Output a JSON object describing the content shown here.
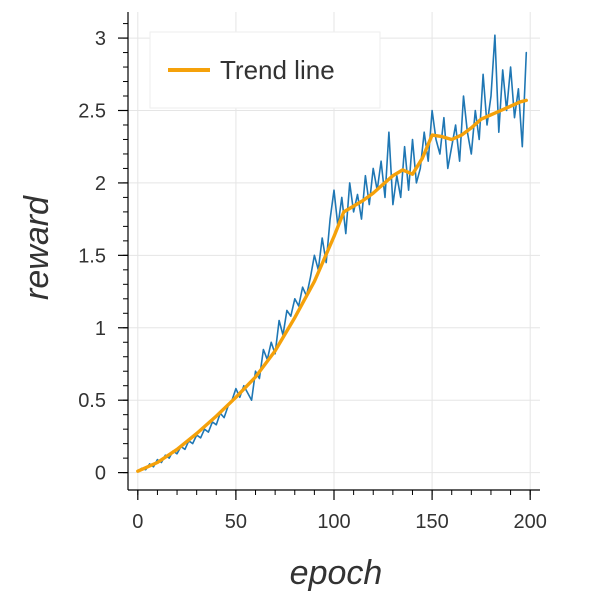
{
  "chart_data": {
    "type": "line",
    "xlabel": "epoch",
    "ylabel": "reward",
    "xlim": [
      -5,
      205
    ],
    "ylim": [
      -0.12,
      3.18
    ],
    "grid": true,
    "legend": {
      "placement": "top-left",
      "entries": [
        "Trend line"
      ]
    },
    "colors": {
      "raw": "#1f77b4",
      "trend": "#f5a10a",
      "grid": "#e5e5e5"
    },
    "x_ticks": [
      {
        "value": 0,
        "label": "0"
      },
      {
        "value": 50,
        "label": "50"
      },
      {
        "value": 100,
        "label": "100"
      },
      {
        "value": 150,
        "label": "150"
      },
      {
        "value": 200,
        "label": "200"
      }
    ],
    "y_ticks": [
      {
        "value": 0,
        "label": "0"
      },
      {
        "value": 0.5,
        "label": "0.5"
      },
      {
        "value": 1,
        "label": "1"
      },
      {
        "value": 1.5,
        "label": "1.5"
      },
      {
        "value": 2,
        "label": "2"
      },
      {
        "value": 2.5,
        "label": "2.5"
      },
      {
        "value": 3,
        "label": "3"
      }
    ],
    "series": [
      {
        "name": "",
        "color": "#1f77b4",
        "x": [
          0,
          2,
          4,
          6,
          8,
          10,
          12,
          14,
          16,
          18,
          20,
          22,
          24,
          26,
          28,
          30,
          32,
          34,
          36,
          38,
          40,
          42,
          44,
          46,
          48,
          50,
          52,
          54,
          56,
          58,
          60,
          62,
          64,
          66,
          68,
          70,
          72,
          74,
          76,
          78,
          80,
          82,
          84,
          86,
          88,
          90,
          92,
          94,
          96,
          98,
          100,
          102,
          104,
          106,
          108,
          110,
          112,
          114,
          116,
          118,
          120,
          122,
          124,
          126,
          128,
          130,
          132,
          134,
          136,
          138,
          140,
          142,
          144,
          146,
          148,
          150,
          152,
          154,
          156,
          158,
          160,
          162,
          164,
          166,
          168,
          170,
          172,
          174,
          176,
          178,
          180,
          182,
          184,
          186,
          188,
          190,
          192,
          194,
          196,
          198
        ],
        "values": [
          0.01,
          0.03,
          0.02,
          0.06,
          0.04,
          0.09,
          0.07,
          0.12,
          0.1,
          0.15,
          0.13,
          0.18,
          0.16,
          0.22,
          0.2,
          0.26,
          0.24,
          0.3,
          0.28,
          0.35,
          0.33,
          0.41,
          0.38,
          0.46,
          0.5,
          0.58,
          0.52,
          0.6,
          0.55,
          0.5,
          0.7,
          0.65,
          0.85,
          0.78,
          0.9,
          0.82,
          1.05,
          0.95,
          1.12,
          1.08,
          1.2,
          1.15,
          1.28,
          1.22,
          1.35,
          1.5,
          1.4,
          1.62,
          1.45,
          1.75,
          1.95,
          1.7,
          1.9,
          1.65,
          2.0,
          1.8,
          1.92,
          1.75,
          2.05,
          1.85,
          2.1,
          1.95,
          2.15,
          1.9,
          2.35,
          1.85,
          2.05,
          1.9,
          2.25,
          1.95,
          2.3,
          2.0,
          2.1,
          2.35,
          2.15,
          2.5,
          2.3,
          2.2,
          2.45,
          2.1,
          2.25,
          2.4,
          2.15,
          2.6,
          2.35,
          2.2,
          2.5,
          2.3,
          2.75,
          2.4,
          2.6,
          3.02,
          2.35,
          2.78,
          2.5,
          2.8,
          2.45,
          2.65,
          2.25,
          2.9
        ]
      },
      {
        "name": "Trend line",
        "color": "#f5a10a",
        "x": [
          0,
          10,
          20,
          30,
          40,
          50,
          60,
          70,
          80,
          90,
          100,
          105,
          110,
          115,
          120,
          125,
          130,
          135,
          140,
          145,
          150,
          155,
          160,
          165,
          170,
          175,
          180,
          185,
          190,
          195,
          198
        ],
        "values": [
          0.01,
          0.07,
          0.16,
          0.27,
          0.39,
          0.52,
          0.66,
          0.84,
          1.07,
          1.32,
          1.63,
          1.8,
          1.84,
          1.88,
          1.93,
          1.99,
          2.05,
          2.09,
          2.06,
          2.17,
          2.33,
          2.32,
          2.3,
          2.33,
          2.38,
          2.44,
          2.47,
          2.5,
          2.53,
          2.56,
          2.57
        ]
      }
    ]
  }
}
